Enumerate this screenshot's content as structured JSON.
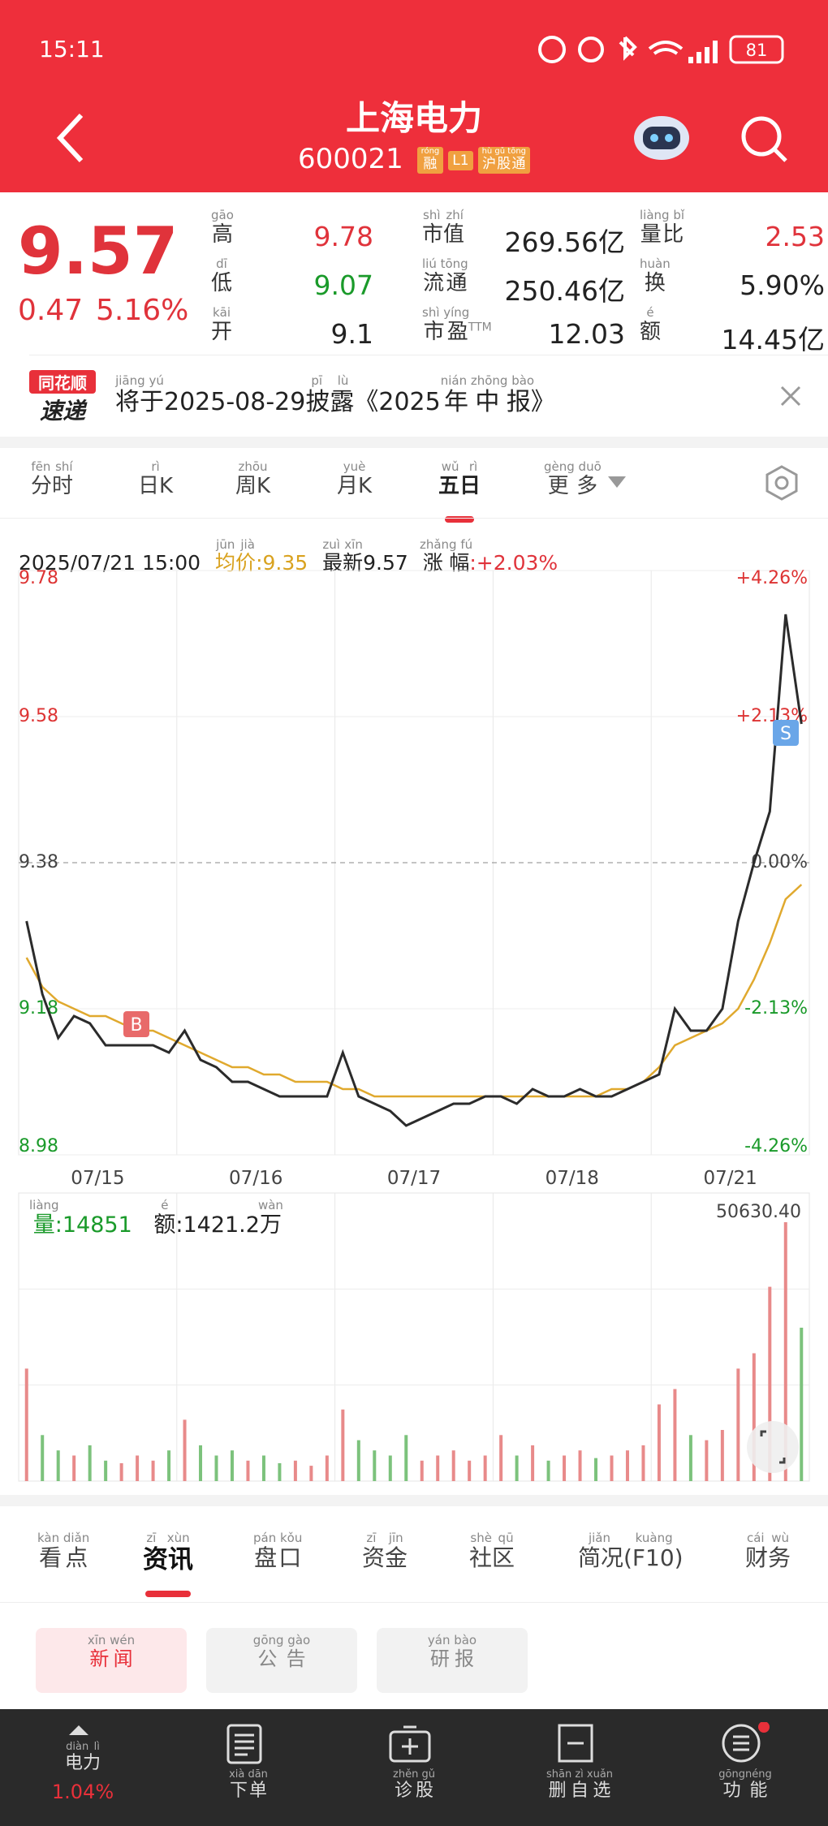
{
  "status_bar": {
    "time": "15:11",
    "battery": "81"
  },
  "header": {
    "title": "上海电力",
    "code": "600021",
    "badges": [
      {
        "text": "融",
        "pinyin": "róng"
      },
      {
        "text": "L1"
      },
      {
        "text": "沪股通",
        "pinyin": "hù gǔ tōng"
      }
    ]
  },
  "quote": {
    "price": 9.57,
    "change": 0.47,
    "change_pct": "5.16%"
  },
  "stats": [
    {
      "label": {
        "text": "高",
        "pinyin": "gāo"
      },
      "value": 9.78,
      "tone": "up"
    },
    {
      "label": {
        "text": "低",
        "pinyin": "dī"
      },
      "value": 9.07,
      "tone": "down"
    },
    {
      "label": {
        "text": "开",
        "pinyin": "kāi"
      },
      "value": 9.1,
      "tone": "flat"
    },
    {
      "label": {
        "text": "市值",
        "pinyin": "shì zhí"
      },
      "value": "269.56亿",
      "tone": "flat"
    },
    {
      "label": {
        "text": "流通",
        "pinyin": "liú tōng"
      },
      "value": "250.46亿",
      "tone": "flat"
    },
    {
      "label": {
        "text": "市盈",
        "pinyin": "shì yíng",
        "suffix": "TTM"
      },
      "value": 12.03,
      "tone": "flat"
    },
    {
      "label": {
        "text": "量比",
        "pinyin": "liàng bǐ"
      },
      "value": 2.53,
      "tone": "up"
    },
    {
      "label": {
        "text": "换",
        "pinyin": "huàn"
      },
      "value": "5.90%",
      "tone": "flat"
    },
    {
      "label": {
        "text": "额",
        "pinyin": "é"
      },
      "value": "14.45亿",
      "tone": "flat"
    }
  ],
  "news_banner": {
    "logo_top": "同花顺",
    "logo_bottom": "速递",
    "parts": [
      {
        "text": "将于",
        "pinyin": "jiāng yú"
      },
      {
        "text": "2025-08-29"
      },
      {
        "text": "披露",
        "pinyin": "pī lù"
      },
      {
        "text": "《2025"
      },
      {
        "text": "年中报",
        "pinyin": "nián zhōng bào"
      },
      {
        "text": "》"
      }
    ]
  },
  "period_tabs": [
    {
      "text": "分时",
      "pinyin": "fēn shí"
    },
    {
      "text": "日K",
      "pinyin": "rì"
    },
    {
      "text": "周K",
      "pinyin": "zhōu"
    },
    {
      "text": "月K",
      "pinyin": "yuè"
    },
    {
      "text": "五日",
      "pinyin": "wǔ rì",
      "active": true
    },
    {
      "text": "更多",
      "pinyin": "gèng duō"
    }
  ],
  "chart_info": {
    "time": "2025/07/21 15:00",
    "avg": {
      "label": {
        "text": "均价",
        "pinyin": "jūn jià"
      },
      "value": ":9.35"
    },
    "latest": {
      "label": {
        "text": "最新",
        "pinyin": "zuì xīn"
      },
      "value": "9.57"
    },
    "change": {
      "label": {
        "text": "涨幅",
        "pinyin": "zhǎng fú"
      },
      "value": ":+2.03%"
    }
  },
  "chart_data": {
    "type": "line",
    "categories": [
      null,
      null,
      null,
      null,
      null,
      "07/15",
      null,
      null,
      null,
      null,
      null,
      null,
      null,
      null,
      null,
      "07/16",
      null,
      null,
      null,
      null,
      null,
      null,
      null,
      null,
      null,
      "07/17",
      null,
      null,
      null,
      null,
      null,
      null,
      null,
      null,
      null,
      "07/18",
      null,
      null,
      null,
      null,
      null,
      null,
      null,
      null,
      null,
      "07/21",
      null,
      null,
      null,
      null
    ],
    "series": [
      {
        "name": "价格",
        "color": "#2b2b2b",
        "values": [
          9.3,
          9.2,
          9.14,
          9.17,
          9.16,
          9.13,
          9.13,
          9.13,
          9.13,
          9.12,
          9.15,
          9.11,
          9.1,
          9.08,
          9.08,
          9.07,
          9.06,
          9.06,
          9.06,
          9.06,
          9.12,
          9.06,
          9.05,
          9.04,
          9.02,
          9.03,
          9.04,
          9.05,
          9.05,
          9.06,
          9.06,
          9.05,
          9.07,
          9.06,
          9.06,
          9.07,
          9.06,
          9.06,
          9.07,
          9.08,
          9.09,
          9.18,
          9.15,
          9.15,
          9.18,
          9.3,
          9.38,
          9.45,
          9.72,
          9.57
        ]
      },
      {
        "name": "均价",
        "color": "#e0a92e",
        "values": [
          9.25,
          9.21,
          9.19,
          9.18,
          9.17,
          9.17,
          9.16,
          9.15,
          9.15,
          9.14,
          9.13,
          9.12,
          9.11,
          9.1,
          9.1,
          9.09,
          9.09,
          9.08,
          9.08,
          9.08,
          9.07,
          9.07,
          9.06,
          9.06,
          9.06,
          9.06,
          9.06,
          9.06,
          9.06,
          9.06,
          9.06,
          9.06,
          9.06,
          9.06,
          9.06,
          9.06,
          9.06,
          9.07,
          9.07,
          9.08,
          9.1,
          9.13,
          9.14,
          9.15,
          9.16,
          9.18,
          9.22,
          9.27,
          9.33,
          9.35
        ]
      }
    ],
    "ylim": [
      8.98,
      9.78
    ],
    "yticks": [
      9.78,
      9.58,
      9.38,
      9.18,
      8.98
    ],
    "y2lim": [
      8.98,
      9.78
    ],
    "y2ticks": [
      {
        "value": 9.78,
        "label": "+4.26%"
      },
      {
        "value": 9.58,
        "label": "+2.13%"
      },
      {
        "value": 9.38,
        "label": "0.00%"
      },
      {
        "value": 9.18,
        "label": "-2.13%"
      },
      {
        "value": 8.98,
        "label": "-4.26%"
      }
    ],
    "annotations": [
      {
        "label": "B"
      },
      {
        "label": "S"
      }
    ],
    "grid": true,
    "volume": {
      "ylim": [
        0,
        50630.4
      ],
      "max_label": "50630.40",
      "up_color": "#e88a8a",
      "down_color": "#7cc27c",
      "values": [
        22000,
        9000,
        6000,
        5000,
        7000,
        4000,
        3500,
        5000,
        4000,
        6000,
        12000,
        7000,
        5000,
        6000,
        4000,
        5000,
        3500,
        4000,
        3000,
        5000,
        14000,
        8000,
        6000,
        5000,
        9000,
        4000,
        5000,
        6000,
        4000,
        5000,
        9000,
        5000,
        7000,
        4000,
        5000,
        6000,
        4500,
        5000,
        6000,
        7000,
        15000,
        18000,
        9000,
        8000,
        10000,
        22000,
        25000,
        38000,
        50630.4,
        30000
      ]
    }
  },
  "volume_info": {
    "volume": {
      "label": {
        "text": "量",
        "pinyin": "liàng"
      },
      "value": ":14851"
    },
    "amount": {
      "label": {
        "text": "额",
        "pinyin": "é"
      },
      "value": ":1421.2",
      "unit": {
        "text": "万",
        "pinyin": "wàn"
      }
    }
  },
  "info_tabs": [
    {
      "text": "看点",
      "pinyin": "kàn diǎn"
    },
    {
      "text": "资讯",
      "pinyin": "zī xùn",
      "active": true
    },
    {
      "text": "盘口",
      "pinyin": "pán kǒu"
    },
    {
      "text": "资金",
      "pinyin": "zī jīn"
    },
    {
      "text": "社区",
      "pinyin": "shè qū"
    },
    {
      "text": "简况(F10)",
      "pinyin": "jiǎn kuàng"
    },
    {
      "text": "财务",
      "pinyin": "cái wù"
    }
  ],
  "sub_tabs": [
    {
      "text": "新闻",
      "pinyin": "xīn wén",
      "active": true
    },
    {
      "text": "公告",
      "pinyin": "gōng gào"
    },
    {
      "text": "研报",
      "pinyin": "yán bào"
    }
  ],
  "bottom_nav": [
    {
      "text": "电力",
      "pinyin": "diàn lì",
      "value": "1.04%"
    },
    {
      "text": "下单",
      "pinyin": "xià dān"
    },
    {
      "text": "诊股",
      "pinyin": "zhěn gǔ"
    },
    {
      "text": "删自选",
      "pinyin": "shān zì xuǎn"
    },
    {
      "text": "功能",
      "pinyin": "gōngnéng"
    }
  ]
}
